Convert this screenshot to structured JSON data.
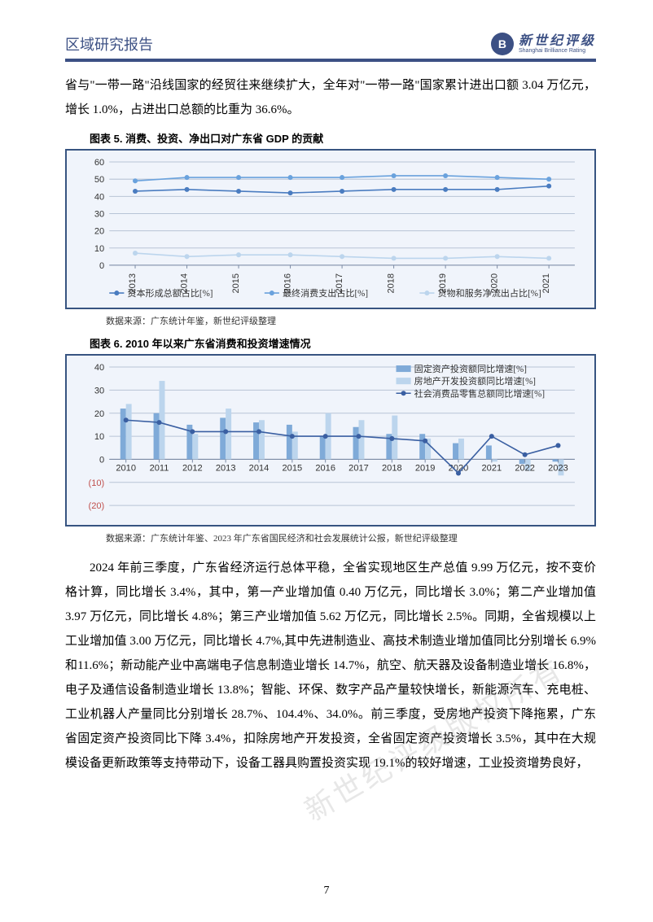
{
  "header": {
    "title": "区域研究报告",
    "logo_cn": "新世纪评级",
    "logo_en": "Shanghai Brilliance Rating",
    "logo_icon_label": "B"
  },
  "intro_paragraph": "省与\"一带一路\"沿线国家的经贸往来继续扩大，全年对\"一带一路\"国家累计进出口额 3.04 万亿元，增长 1.0%，占进出口总额的比重为 36.6%。",
  "chart5": {
    "caption": "图表 5.  消费、投资、净出口对广东省 GDP 的贡献",
    "type": "line",
    "background_color": "#f0f4fb",
    "border_color": "#375481",
    "grid_color": "#b8c4d6",
    "axis_color": "#7c8ba5",
    "xcats": [
      "2013",
      "2014",
      "2015",
      "2016",
      "2017",
      "2018",
      "2019",
      "2020",
      "2021"
    ],
    "ylim": [
      0,
      60
    ],
    "ytick_step": 10,
    "series": [
      {
        "name": "资本形成总额占比[%]",
        "color": "#4a7cc0",
        "marker": "circle",
        "width": 1.6,
        "values": [
          43,
          44,
          43,
          42,
          43,
          44,
          44,
          44,
          46
        ]
      },
      {
        "name": "最终消费支出占比[%]",
        "color": "#6aa2dd",
        "marker": "circle",
        "width": 1.6,
        "values": [
          49,
          51,
          51,
          51,
          51,
          52,
          52,
          51,
          50
        ]
      },
      {
        "name": "货物和服务净流出占比[%]",
        "color": "#bcd5ed",
        "marker": "circle",
        "width": 1.6,
        "values": [
          7,
          5,
          6,
          6,
          5,
          4,
          4,
          5,
          4
        ]
      }
    ],
    "legend_fontsize": 11,
    "tick_fontsize": 11,
    "source": "数据来源：广东统计年鉴，新世纪评级整理"
  },
  "chart6": {
    "caption": "图表 6.  2010 年以来广东省消费和投资增速情况",
    "type": "bar_line",
    "background_color": "#f0f4fb",
    "border_color": "#375481",
    "grid_color": "#b8c4d6",
    "axis_color": "#7c8ba5",
    "neg_label_color": "#c0504d",
    "xcats": [
      "2010",
      "2011",
      "2012",
      "2013",
      "2014",
      "2015",
      "2016",
      "2017",
      "2018",
      "2019",
      "2020",
      "2021",
      "2022",
      "2023"
    ],
    "ylim": [
      -20,
      40
    ],
    "yticks": [
      -20,
      -10,
      0,
      10,
      20,
      30,
      40
    ],
    "ytick_labels": [
      "(20)",
      "(10)",
      "0",
      "10",
      "20",
      "30",
      "40"
    ],
    "bar_width": 0.34,
    "bar_series": [
      {
        "name": "固定资产投资额同比增速[%]",
        "color": "#7faad8",
        "values": [
          22,
          20,
          15,
          18,
          16,
          15,
          10,
          14,
          11,
          11,
          7,
          6,
          -2,
          -1
        ]
      },
      {
        "name": "房地产开发投资额同比增速[%]",
        "color": "#bcd5ed",
        "values": [
          24,
          34,
          11,
          22,
          17,
          12,
          20,
          17,
          19,
          9,
          9,
          -1,
          -5,
          -7
        ]
      }
    ],
    "line_series": {
      "name": "社会消费品零售总额同比增速[%]",
      "color": "#3a5fa2",
      "marker": "circle",
      "width": 1.6,
      "values": [
        17,
        16,
        12,
        12,
        12,
        10,
        10,
        10,
        9,
        8,
        -6,
        10,
        2,
        6
      ]
    },
    "legend_fontsize": 11,
    "tick_fontsize": 11,
    "source": "数据来源：广东统计年鉴、2023 年广东省国民经济和社会发展统计公报，新世纪评级整理"
  },
  "main_paragraph": "2024 年前三季度，广东省经济运行总体平稳，全省实现地区生产总值 9.99 万亿元，按不变价格计算，同比增长 3.4%，其中，第一产业增加值 0.40 万亿元，同比增长 3.0%；第二产业增加值 3.97 万亿元，同比增长 4.8%；第三产业增加值 5.62 万亿元，同比增长 2.5%。同期，全省规模以上工业增加值 3.00 万亿元，同比增长 4.7%,其中先进制造业、高技术制造业增加值同比分别增长 6.9%和11.6%；新动能产业中高端电子信息制造业增长 14.7%，航空、航天器及设备制造业增长 16.8%，电子及通信设备制造业增长 13.8%；智能、环保、数字产品产量较快增长，新能源汽车、充电桩、工业机器人产量同比分别增长 28.7%、104.4%、34.0%。前三季度，受房地产投资下降拖累，广东省固定资产投资同比下降 3.4%，扣除房地产开发投资，全省固定资产投资增长 3.5%，其中在大规模设备更新政策等支持带动下，设备工器具购置投资实现 19.1%的较好增速，工业投资增势良好，",
  "watermark": "新世纪评级版权所有",
  "page_number": "7"
}
